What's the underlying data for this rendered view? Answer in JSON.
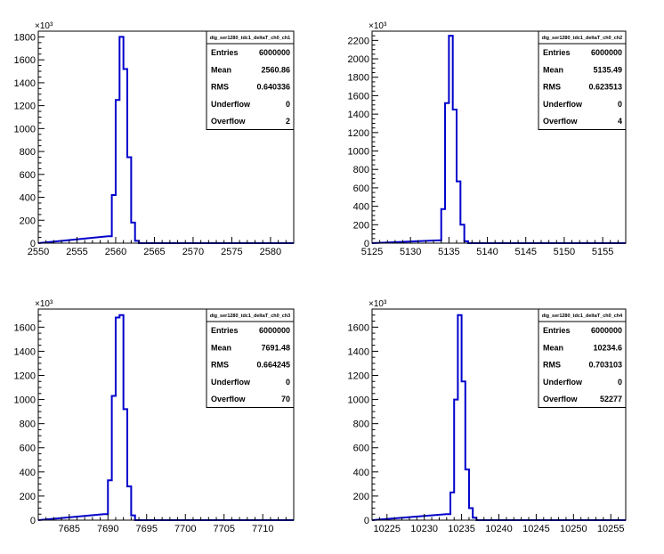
{
  "chart_data": [
    {
      "type": "bar",
      "histogram_name": "dig_ser1280_tdc1_deltaT_ch0_ch1",
      "x_range": [
        2550,
        2583
      ],
      "x_ticks": [
        2550,
        2555,
        2560,
        2565,
        2570,
        2575,
        2580
      ],
      "y_range": [
        0,
        1850
      ],
      "y_ticks": [
        0,
        200,
        400,
        600,
        800,
        1000,
        1200,
        1400,
        1600,
        1800
      ],
      "y_multiplier": "×10³",
      "bin_width": 0.5,
      "bins": [
        {
          "x": 2559.0,
          "value": 60
        },
        {
          "x": 2559.5,
          "value": 420
        },
        {
          "x": 2560.0,
          "value": 1250
        },
        {
          "x": 2560.5,
          "value": 1800
        },
        {
          "x": 2561.0,
          "value": 1520
        },
        {
          "x": 2561.5,
          "value": 750
        },
        {
          "x": 2562.0,
          "value": 180
        },
        {
          "x": 2562.5,
          "value": 20
        }
      ],
      "stats": [
        {
          "label": "Entries",
          "value": "6000000"
        },
        {
          "label": "Mean",
          "value": "2560.86"
        },
        {
          "label": "RMS",
          "value": "0.640336"
        },
        {
          "label": "Underflow",
          "value": "0"
        },
        {
          "label": "Overflow",
          "value": "2"
        }
      ]
    },
    {
      "type": "bar",
      "histogram_name": "dig_ser1280_tdc1_deltaT_ch0_ch2",
      "x_range": [
        5125,
        5158
      ],
      "x_ticks": [
        5125,
        5130,
        5135,
        5140,
        5145,
        5150,
        5155
      ],
      "y_range": [
        0,
        2300
      ],
      "y_ticks": [
        0,
        200,
        400,
        600,
        800,
        1000,
        1200,
        1400,
        1600,
        1800,
        2000,
        2200
      ],
      "y_multiplier": "×10³",
      "bin_width": 0.5,
      "bins": [
        {
          "x": 5133.5,
          "value": 30
        },
        {
          "x": 5134.0,
          "value": 370
        },
        {
          "x": 5134.5,
          "value": 1520
        },
        {
          "x": 5135.0,
          "value": 2250
        },
        {
          "x": 5135.5,
          "value": 1450
        },
        {
          "x": 5136.0,
          "value": 670
        },
        {
          "x": 5136.5,
          "value": 200
        },
        {
          "x": 5137.0,
          "value": 20
        }
      ],
      "stats": [
        {
          "label": "Entries",
          "value": "6000000"
        },
        {
          "label": "Mean",
          "value": "5135.49"
        },
        {
          "label": "RMS",
          "value": "0.623513"
        },
        {
          "label": "Underflow",
          "value": "0"
        },
        {
          "label": "Overflow",
          "value": "4"
        }
      ]
    },
    {
      "type": "bar",
      "histogram_name": "dig_ser1280_tdc1_deltaT_ch0_ch3",
      "x_range": [
        7681,
        7714
      ],
      "x_ticks": [
        7685,
        7690,
        7695,
        7700,
        7705,
        7710
      ],
      "y_range": [
        0,
        1750
      ],
      "y_ticks": [
        0,
        200,
        400,
        600,
        800,
        1000,
        1200,
        1400,
        1600
      ],
      "y_multiplier": "×10³",
      "bin_width": 0.5,
      "bins": [
        {
          "x": 7689.5,
          "value": 50
        },
        {
          "x": 7690.0,
          "value": 330
        },
        {
          "x": 7690.5,
          "value": 1030
        },
        {
          "x": 7691.0,
          "value": 1680
        },
        {
          "x": 7691.5,
          "value": 1700
        },
        {
          "x": 7692.0,
          "value": 920
        },
        {
          "x": 7692.5,
          "value": 280
        },
        {
          "x": 7693.0,
          "value": 40
        }
      ],
      "stats": [
        {
          "label": "Entries",
          "value": "6000000"
        },
        {
          "label": "Mean",
          "value": "7691.48"
        },
        {
          "label": "RMS",
          "value": "0.664245"
        },
        {
          "label": "Underflow",
          "value": "0"
        },
        {
          "label": "Overflow",
          "value": "70"
        }
      ]
    },
    {
      "type": "bar",
      "histogram_name": "dig_ser1280_tdc1_deltaT_ch0_ch4",
      "x_range": [
        10223,
        10257
      ],
      "x_ticks": [
        10225,
        10230,
        10235,
        10240,
        10245,
        10250,
        10255
      ],
      "y_range": [
        0,
        1750
      ],
      "y_ticks": [
        0,
        200,
        400,
        600,
        800,
        1000,
        1200,
        1400,
        1600
      ],
      "y_multiplier": "×10³",
      "bin_width": 0.5,
      "bins": [
        {
          "x": 10233.0,
          "value": 50
        },
        {
          "x": 10233.5,
          "value": 230
        },
        {
          "x": 10234.0,
          "value": 1000
        },
        {
          "x": 10234.5,
          "value": 1700
        },
        {
          "x": 10235.0,
          "value": 1150
        },
        {
          "x": 10235.5,
          "value": 420
        },
        {
          "x": 10236.0,
          "value": 100
        },
        {
          "x": 10236.5,
          "value": 20
        }
      ],
      "stats": [
        {
          "label": "Entries",
          "value": "6000000"
        },
        {
          "label": "Mean",
          "value": "10234.6"
        },
        {
          "label": "RMS",
          "value": "0.703103"
        },
        {
          "label": "Underflow",
          "value": "0"
        },
        {
          "label": "Overflow",
          "value": "52277"
        }
      ]
    }
  ],
  "colors": {
    "histogram_line": "#0000cc",
    "axis": "#000000",
    "background": "#ffffff"
  }
}
